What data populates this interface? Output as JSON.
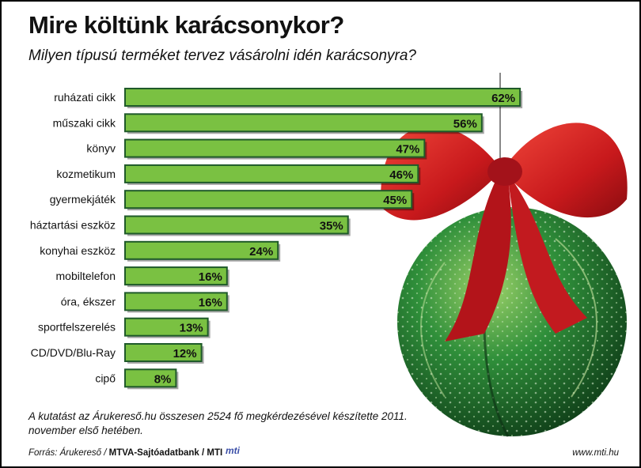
{
  "header": {
    "title": "Mire költünk karácsonykor?",
    "subtitle": "Milyen típusú terméket tervez vásárolni idén karácsonyra?"
  },
  "chart_data": {
    "type": "bar",
    "orientation": "horizontal",
    "categories": [
      "ruházati cikk",
      "műszaki cikk",
      "könyv",
      "kozmetikum",
      "gyermekjáték",
      "háztartási eszköz",
      "konyhai eszköz",
      "mobiltelefon",
      "óra, ékszer",
      "sportfelszerelés",
      "CD/DVD/Blu-Ray",
      "cipő"
    ],
    "values": [
      62,
      56,
      47,
      46,
      45,
      35,
      24,
      16,
      16,
      13,
      12,
      8
    ],
    "data_labels": [
      "62%",
      "56%",
      "47%",
      "46%",
      "45%",
      "35%",
      "24%",
      "16%",
      "16%",
      "13%",
      "12%",
      "8%"
    ],
    "unit": "%",
    "bar_color": "#7ac142",
    "bar_border_color": "#1f5a2a",
    "grid": false,
    "legend": "none"
  },
  "footer": {
    "note": "A kutatást az Árukereső.hu összesen 2524 fő megkérdezésével készítette 2011. november első hetében.",
    "source_prefix": "Forrás: Árukereső /",
    "source_bold": "MTVA-Sajtóadatbank / MTI",
    "logo": "mti",
    "url": "www.mti.hu"
  },
  "decoration": {
    "ornament": "christmas-bauble-with-red-bow",
    "colors": {
      "ribbon": "#d42a2a",
      "bauble": "#2e8a3a"
    }
  }
}
